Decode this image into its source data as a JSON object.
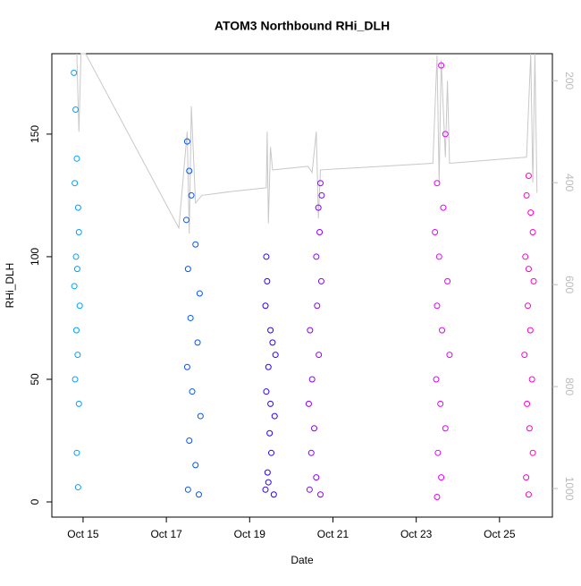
{
  "chart_data": {
    "type": "scatter",
    "title": "ATOM3 Northbound RHi_DLH",
    "x_label": "Date",
    "y_label": "RHi_DLH",
    "xlim": [
      14.25,
      26.27
    ],
    "xticks": [
      {
        "value": 15,
        "label": "Oct 15"
      },
      {
        "value": 17,
        "label": "Oct 17"
      },
      {
        "value": 19,
        "label": "Oct 19"
      },
      {
        "value": 21,
        "label": "Oct 21"
      },
      {
        "value": 23,
        "label": "Oct 23"
      },
      {
        "value": 25,
        "label": "Oct 25"
      }
    ],
    "ylim": [
      -6.2,
      182.8
    ],
    "yticks": [
      0,
      50,
      100,
      150
    ],
    "y2lim": [
      1056,
      147
    ],
    "y2ticks": [
      200,
      400,
      600,
      800,
      1000
    ],
    "series": [
      {
        "color": "#00a0ff",
        "x": [
          14.78,
          14.82,
          14.85,
          14.8,
          14.88,
          14.9,
          14.83,
          14.86,
          14.79,
          14.92,
          14.84,
          14.87,
          14.81,
          14.9,
          14.85,
          14.88
        ],
        "values": [
          175,
          160,
          140,
          130,
          120,
          110,
          100,
          95,
          88,
          80,
          70,
          60,
          50,
          40,
          20,
          6
        ]
      },
      {
        "color": "#0055ff",
        "x": [
          17.5,
          17.55,
          17.6,
          17.48,
          17.7,
          17.52,
          17.8,
          17.58,
          17.75,
          17.5,
          17.62,
          17.82,
          17.55,
          17.7,
          17.52,
          17.78
        ],
        "values": [
          147,
          135,
          125,
          115,
          105,
          95,
          85,
          75,
          65,
          55,
          45,
          35,
          25,
          15,
          5,
          3
        ]
      },
      {
        "color": "#2a00ff",
        "x": [
          19.4,
          19.42,
          19.38,
          19.5,
          19.55,
          19.45,
          19.4,
          19.6,
          19.48,
          19.52,
          19.43,
          19.38,
          19.58,
          19.62,
          19.5,
          19.45
        ],
        "values": [
          100,
          90,
          80,
          70,
          65,
          55,
          45,
          35,
          28,
          20,
          12,
          5,
          3,
          60,
          40,
          8
        ]
      },
      {
        "color": "#8800ff",
        "x": [
          20.7,
          20.65,
          20.68,
          20.6,
          20.72,
          20.62,
          20.45,
          20.66,
          20.5,
          20.42,
          20.55,
          20.48,
          20.6,
          20.44,
          20.7,
          20.73
        ],
        "values": [
          130,
          120,
          110,
          100,
          90,
          80,
          70,
          60,
          50,
          40,
          30,
          20,
          10,
          5,
          3,
          125
        ]
      },
      {
        "color": "#e000ff",
        "x": [
          23.6,
          23.7,
          23.5,
          23.65,
          23.45,
          23.55,
          23.75,
          23.5,
          23.62,
          23.8,
          23.48,
          23.58,
          23.7,
          23.52,
          23.6,
          23.5
        ],
        "values": [
          178,
          150,
          130,
          120,
          110,
          100,
          90,
          80,
          70,
          60,
          50,
          40,
          30,
          20,
          10,
          2
        ]
      },
      {
        "color": "#ff00c8",
        "x": [
          25.7,
          25.65,
          25.75,
          25.8,
          25.62,
          25.7,
          25.82,
          25.68,
          25.74,
          25.6,
          25.78,
          25.66,
          25.72,
          25.8,
          25.64,
          25.7
        ],
        "values": [
          133,
          125,
          118,
          110,
          100,
          95,
          90,
          80,
          70,
          60,
          50,
          40,
          30,
          20,
          10,
          3
        ]
      },
      {
        "type": "line",
        "axis": "y2",
        "color": "#c8c8c8",
        "x": [
          14.85,
          14.9,
          14.95,
          15.06,
          17.3,
          17.5,
          17.55,
          17.6,
          17.7,
          17.85,
          18.5,
          19.4,
          19.42,
          19.45,
          19.5,
          19.55,
          20.4,
          20.5,
          20.6,
          20.65,
          20.7,
          23.4,
          23.5,
          23.55,
          23.6,
          23.7,
          23.75,
          23.8,
          25.65,
          25.75,
          25.8,
          25.85,
          25.9
        ],
        "values": [
          147,
          300,
          147,
          147,
          489,
          300,
          500,
          250,
          440,
          425,
          418,
          410,
          300,
          480,
          330,
          375,
          368,
          380,
          300,
          470,
          375,
          362,
          150,
          400,
          160,
          350,
          200,
          362,
          350,
          147,
          400,
          147,
          420
        ]
      }
    ]
  }
}
